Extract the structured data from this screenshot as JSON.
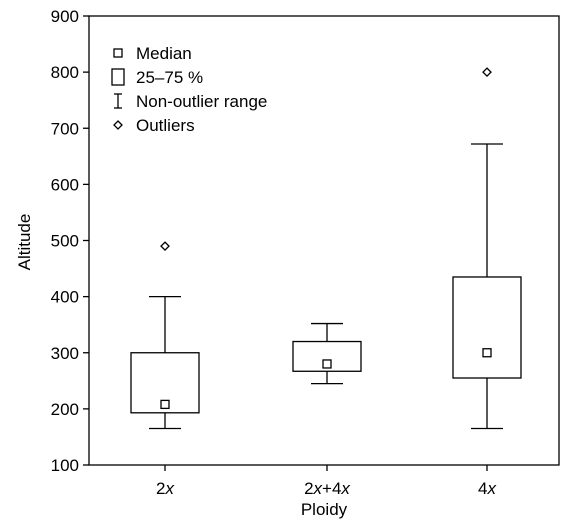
{
  "chart_data": {
    "type": "box",
    "xlabel": "Ploidy",
    "ylabel": "Altitude",
    "ylim": [
      100,
      900
    ],
    "yticks": [
      100,
      200,
      300,
      400,
      500,
      600,
      700,
      800,
      900
    ],
    "categories": [
      {
        "prefix": "2",
        "var1": "x",
        "mid": "+4",
        "var2": "x"
      },
      {
        "prefix": "2",
        "var1": "x",
        "mid": "",
        "var2": ""
      },
      {
        "prefix": "4",
        "var1": "x",
        "mid": "",
        "var2": ""
      }
    ],
    "boxes": [
      {
        "whisker_low": 165,
        "q1": 193,
        "median": 208,
        "q3": 300,
        "whisker_high": 400,
        "outliers": [
          490
        ]
      },
      {
        "whisker_low": 245,
        "q1": 267,
        "median": 280,
        "q3": 320,
        "whisker_high": 352,
        "outliers": []
      },
      {
        "whisker_low": 165,
        "q1": 255,
        "median": 300,
        "q3": 435,
        "whisker_high": 672,
        "outliers": [
          800
        ]
      }
    ],
    "legend": {
      "position": "top-left",
      "items": [
        {
          "symbol": "median",
          "label": "Median"
        },
        {
          "symbol": "box",
          "label": "25–75 %"
        },
        {
          "symbol": "whisker",
          "label": "Non-outlier range"
        },
        {
          "symbol": "outlier",
          "label": "Outliers"
        }
      ]
    }
  }
}
